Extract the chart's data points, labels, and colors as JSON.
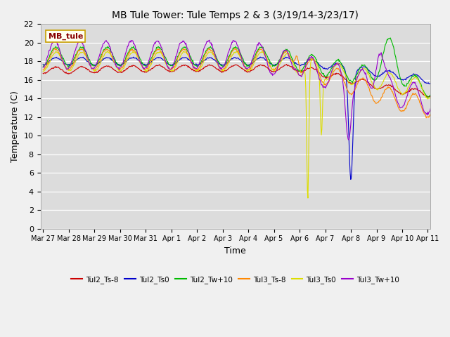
{
  "title": "MB Tule Tower: Tule Temps 2 & 3 (3/19/14-3/23/17)",
  "xlabel": "Time",
  "ylabel": "Temperature (C)",
  "ylim": [
    0,
    22
  ],
  "yticks": [
    0,
    2,
    4,
    6,
    8,
    10,
    12,
    14,
    16,
    18,
    20,
    22
  ],
  "bg_color": "#dcdcdc",
  "legend_box_color": "#fffff0",
  "legend_box_edge": "#c8a000",
  "annotation_label": "MB_tule",
  "series": [
    {
      "label": "Tul2_Ts-8",
      "color": "#cc0000"
    },
    {
      "label": "Tul2_Ts0",
      "color": "#0000cc"
    },
    {
      "label": "Tul2_Tw+10",
      "color": "#00bb00"
    },
    {
      "label": "Tul3_Ts-8",
      "color": "#ff8800"
    },
    {
      "label": "Tul3_Ts0",
      "color": "#dddd00"
    },
    {
      "label": "Tul3_Tw+10",
      "color": "#9900cc"
    }
  ],
  "xtick_labels": [
    "Mar 27",
    "Mar 28",
    "Mar 29",
    "Mar 30",
    "Mar 31",
    "Apr 1",
    "Apr 2",
    "Apr 3",
    "Apr 4",
    "Apr 5",
    "Apr 6",
    "Apr 7",
    "Apr 8",
    "Apr 9",
    "Apr 10",
    "Apr 11"
  ]
}
